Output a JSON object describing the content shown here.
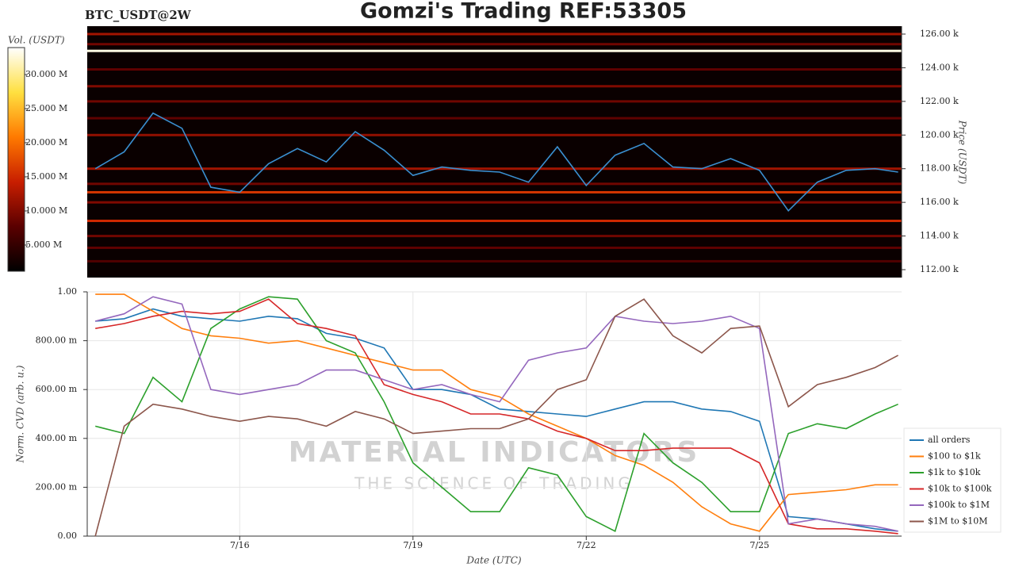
{
  "chart_data": [
    {
      "type": "heatmap",
      "title": "Gomzi's Trading REF:53305",
      "subtitle": "BTC_USDT@2W",
      "ylabel": "Price (USDT)",
      "colorbar_label": "Vol. (USDT)",
      "xlim": [
        13.36,
        27.46
      ],
      "x": [
        13.5,
        14,
        14.5,
        15,
        15.5,
        16,
        16.5,
        17,
        17.5,
        18,
        18.5,
        19,
        19.5,
        20,
        20.5,
        21,
        21.5,
        22,
        22.5,
        23,
        23.5,
        24,
        24.5,
        25,
        25.5,
        26,
        26.5,
        27,
        27.4
      ],
      "price": [
        118000,
        119000,
        121300,
        120400,
        116900,
        116600,
        118300,
        119200,
        118400,
        120200,
        119100,
        117600,
        118100,
        117900,
        117800,
        117200,
        119300,
        117000,
        118800,
        119500,
        118100,
        118000,
        118600,
        117900,
        115500,
        117200,
        117900,
        118000,
        117800
      ],
      "price_color": "#3a8fd0",
      "heat_levels": [
        126000,
        125400,
        125000,
        123900,
        122900,
        122000,
        121000,
        120000,
        118000,
        117100,
        116600,
        116000,
        114900,
        114000,
        113300,
        112500
      ],
      "heat_volumes": [
        12000000,
        9000000,
        33000000,
        8000000,
        10000000,
        9000000,
        8000000,
        11000000,
        12000000,
        9000000,
        16000000,
        10000000,
        15000000,
        9000000,
        8000000,
        7000000
      ],
      "colorscale": [
        "#000000",
        "#5a0000",
        "#c81e00",
        "#ff7a00",
        "#ffe040",
        "#ffffff"
      ],
      "clim": [
        1160000,
        33950000
      ],
      "cticks": [
        {
          "value": 5000000,
          "label": "5.000 M"
        },
        {
          "value": 10000000,
          "label": "10.000 M"
        },
        {
          "value": 15000000,
          "label": "15.000 M"
        },
        {
          "value": 20000000,
          "label": "20.000 M"
        },
        {
          "value": 25000000,
          "label": "25.000 M"
        },
        {
          "value": 30000000,
          "label": "30.000 M"
        }
      ],
      "ylim": [
        111530,
        126470
      ],
      "yticks": [
        {
          "value": 112000,
          "label": "112.00 k"
        },
        {
          "value": 114000,
          "label": "114.00 k"
        },
        {
          "value": 116000,
          "label": "116.00 k"
        },
        {
          "value": 118000,
          "label": "118.00 k"
        },
        {
          "value": 120000,
          "label": "120.00 k"
        },
        {
          "value": 122000,
          "label": "122.00 k"
        },
        {
          "value": 124000,
          "label": "124.00 k"
        },
        {
          "value": 126000,
          "label": "126.00 k"
        }
      ]
    },
    {
      "type": "line",
      "xlabel": "Date (UTC)",
      "ylabel": "Norm. CVD (arb. u.)",
      "watermark": "MATERIAL INDICATORS",
      "watermark_sub": "THE SCIENCE OF TRADING",
      "xlim": [
        13.36,
        27.46
      ],
      "xticks": [
        {
          "value": 16,
          "label": "7/16"
        },
        {
          "value": 19,
          "label": "7/19"
        },
        {
          "value": 22,
          "label": "7/22"
        },
        {
          "value": 25,
          "label": "7/25"
        }
      ],
      "ylim": [
        0,
        1
      ],
      "yticks": [
        {
          "value": 0,
          "label": "0.00"
        },
        {
          "value": 0.2,
          "label": "200.00 m"
        },
        {
          "value": 0.4,
          "label": "400.00 m"
        },
        {
          "value": 0.6,
          "label": "600.00 m"
        },
        {
          "value": 0.8,
          "label": "800.00 m"
        },
        {
          "value": 1,
          "label": "1.00"
        }
      ],
      "grid": true,
      "legend": "right",
      "x": [
        13.5,
        14,
        14.5,
        15,
        15.5,
        16,
        16.5,
        17,
        17.5,
        18,
        18.5,
        19,
        19.5,
        20,
        20.5,
        21,
        21.5,
        22,
        22.5,
        23,
        23.5,
        24,
        24.5,
        25,
        25.5,
        26,
        26.5,
        27,
        27.4
      ],
      "series": [
        {
          "name": "all orders",
          "color": "#1f77b4",
          "values": [
            0.88,
            0.89,
            0.93,
            0.9,
            0.89,
            0.88,
            0.9,
            0.89,
            0.83,
            0.81,
            0.77,
            0.6,
            0.6,
            0.58,
            0.52,
            0.51,
            0.5,
            0.49,
            0.52,
            0.55,
            0.55,
            0.52,
            0.51,
            0.47,
            0.08,
            0.07,
            0.05,
            0.03,
            0.02
          ]
        },
        {
          "name": "$100 to $1k",
          "color": "#ff7f0e",
          "values": [
            0.99,
            0.99,
            0.92,
            0.85,
            0.82,
            0.81,
            0.79,
            0.8,
            0.77,
            0.74,
            0.71,
            0.68,
            0.68,
            0.6,
            0.57,
            0.5,
            0.45,
            0.4,
            0.33,
            0.29,
            0.22,
            0.12,
            0.05,
            0.02,
            0.17,
            0.18,
            0.19,
            0.21,
            0.21
          ]
        },
        {
          "name": "$1k to $10k",
          "color": "#2ca02c",
          "values": [
            0.45,
            0.42,
            0.65,
            0.55,
            0.85,
            0.93,
            0.98,
            0.97,
            0.8,
            0.75,
            0.55,
            0.3,
            0.2,
            0.1,
            0.1,
            0.28,
            0.25,
            0.08,
            0.02,
            0.42,
            0.3,
            0.22,
            0.1,
            0.1,
            0.42,
            0.46,
            0.44,
            0.5,
            0.54
          ]
        },
        {
          "name": "$10k to $100k",
          "color": "#d62728",
          "values": [
            0.85,
            0.87,
            0.9,
            0.92,
            0.91,
            0.92,
            0.97,
            0.87,
            0.85,
            0.82,
            0.62,
            0.58,
            0.55,
            0.5,
            0.5,
            0.48,
            0.43,
            0.4,
            0.35,
            0.35,
            0.36,
            0.36,
            0.36,
            0.3,
            0.05,
            0.03,
            0.03,
            0.02,
            0.01
          ]
        },
        {
          "name": "$100k to $1M",
          "color": "#9467bd",
          "values": [
            0.88,
            0.91,
            0.98,
            0.95,
            0.6,
            0.58,
            0.6,
            0.62,
            0.68,
            0.68,
            0.64,
            0.6,
            0.62,
            0.58,
            0.55,
            0.72,
            0.75,
            0.77,
            0.9,
            0.88,
            0.87,
            0.88,
            0.9,
            0.85,
            0.05,
            0.07,
            0.05,
            0.04,
            0.02
          ]
        },
        {
          "name": "$1M to $10M",
          "color": "#8c564b",
          "values": [
            0,
            0.45,
            0.54,
            0.52,
            0.49,
            0.47,
            0.49,
            0.48,
            0.45,
            0.51,
            0.48,
            0.42,
            0.43,
            0.44,
            0.44,
            0.48,
            0.6,
            0.64,
            0.9,
            0.97,
            0.82,
            0.75,
            0.85,
            0.86,
            0.53,
            0.62,
            0.65,
            0.69,
            0.74
          ]
        }
      ]
    }
  ]
}
